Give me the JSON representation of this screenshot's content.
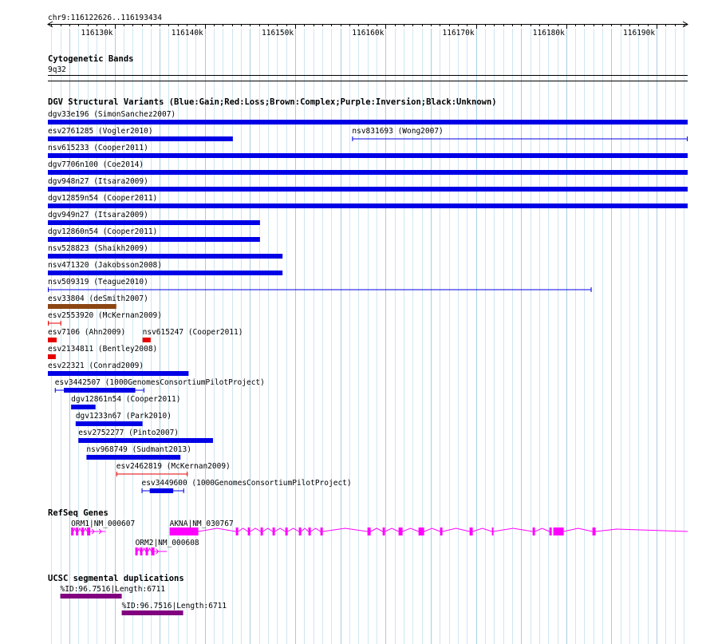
{
  "ruler": {
    "location": "chr9:116122626..116193434",
    "start": 116122626,
    "end": 116193434,
    "ticks": [
      "116130k",
      "116140k",
      "116150k",
      "116160k",
      "116170k",
      "116180k",
      "116190k"
    ]
  },
  "tracks": {
    "cytoband": {
      "title": "Cytogenetic Bands",
      "band": "9q32"
    },
    "dgv": {
      "title": "DGV Structural Variants (Blue:Gain;Red:Loss;Brown:Complex;Purple:Inversion;Black:Unknown)",
      "colors": {
        "gain": "#0000e6",
        "loss": "#e60000",
        "complex": "#8b4513",
        "inversion": "#800080",
        "unknown": "#000000"
      },
      "features": [
        {
          "label": "dgv33e196 (SimonSanchez2007)",
          "type": "gain",
          "start": 116122626,
          "end": 116193434,
          "style": "solid"
        },
        {
          "label": "esv2761285 (Vogler2010)",
          "type": "gain",
          "start": 116122626,
          "end": 116143100,
          "style": "solid"
        },
        {
          "label": "nsv831693 (Wong2007)",
          "type": "gain",
          "start": 116156300,
          "end": 116193434,
          "style": "line"
        },
        {
          "label": "nsv615233 (Cooper2011)",
          "type": "gain",
          "start": 116122626,
          "end": 116193434,
          "style": "solid"
        },
        {
          "label": "dgv7706n100 (Coe2014)",
          "type": "gain",
          "start": 116122626,
          "end": 116193434,
          "style": "solid"
        },
        {
          "label": "dgv948n27 (Itsara2009)",
          "type": "gain",
          "start": 116122626,
          "end": 116193434,
          "style": "solid"
        },
        {
          "label": "dgv12859n54 (Cooper2011)",
          "type": "gain",
          "start": 116122626,
          "end": 116193434,
          "style": "solid"
        },
        {
          "label": "dgv949n27 (Itsara2009)",
          "type": "gain",
          "start": 116122626,
          "end": 116146100,
          "style": "solid"
        },
        {
          "label": "dgv12860n54 (Cooper2011)",
          "type": "gain",
          "start": 116122626,
          "end": 116146100,
          "style": "solid"
        },
        {
          "label": "nsv528823 (Shaikh2009)",
          "type": "gain",
          "start": 116122626,
          "end": 116148600,
          "style": "solid"
        },
        {
          "label": "nsv471320 (Jakobsson2008)",
          "type": "gain",
          "start": 116122626,
          "end": 116148600,
          "style": "solid"
        },
        {
          "label": "nsv509319 (Teague2010)",
          "type": "gain",
          "start": 116122626,
          "end": 116182800,
          "style": "line"
        },
        {
          "label": "esv33804 (deSmith2007)",
          "type": "complex",
          "start": 116122626,
          "end": 116130200,
          "style": "solid"
        },
        {
          "label": "esv2553920 (McKernan2009)",
          "type": "loss",
          "start": 116122626,
          "end": 116124100,
          "style": "line"
        },
        {
          "label": "esv7106 (Ahn2009)",
          "type": "loss",
          "start": 116122626,
          "end": 116123600,
          "style": "solid"
        },
        {
          "label": "nsv615247 (Cooper2011)",
          "type": "loss",
          "start": 116133100,
          "end": 116134000,
          "style": "solid"
        },
        {
          "label": "esv2134811 (Bentley2008)",
          "type": "loss",
          "start": 116122626,
          "end": 116123500,
          "style": "solid"
        },
        {
          "label": "esv22321 (Conrad2009)",
          "type": "gain",
          "start": 116122626,
          "end": 116138200,
          "style": "solid"
        },
        {
          "label": "esv3442507 (1000GenomesConsortiumPilotProject)",
          "type": "gain",
          "start": 116123400,
          "end": 116133300,
          "style": "partial",
          "thickStart": 116124400,
          "thickEnd": 116132300
        },
        {
          "label": "dgv12861n54 (Cooper2011)",
          "type": "gain",
          "start": 116125200,
          "end": 116127900,
          "style": "solid"
        },
        {
          "label": "dgv1233n67 (Park2010)",
          "type": "gain",
          "start": 116125700,
          "end": 116133100,
          "style": "solid"
        },
        {
          "label": "esv2752277 (Pinto2007)",
          "type": "gain",
          "start": 116126000,
          "end": 116140900,
          "style": "solid"
        },
        {
          "label": "nsv968749 (Sudmant2013)",
          "type": "gain",
          "start": 116126900,
          "end": 116137300,
          "style": "solid"
        },
        {
          "label": "esv2462819 (McKernan2009)",
          "type": "loss",
          "start": 116130200,
          "end": 116138100,
          "style": "line"
        },
        {
          "label": "esv3449600 (1000GenomesConsortiumPilotProject)",
          "type": "gain",
          "start": 116133000,
          "end": 116137700,
          "style": "partial",
          "thickStart": 116133900,
          "thickEnd": 116136500
        }
      ]
    },
    "refseq": {
      "title": "RefSeq Genes",
      "color": "#ff00ff",
      "genes": [
        {
          "label": "ORM1|NM_000607",
          "start": 116125200,
          "end": 116129000,
          "strand": "+"
        },
        {
          "label": "AKNA|NM_030767",
          "start": 116136100,
          "end": 116193434,
          "strand": "-"
        },
        {
          "label": "ORM2|NM_000608",
          "start": 116132300,
          "end": 116135800,
          "strand": "+"
        }
      ]
    },
    "segdups": {
      "title": "UCSC segmental duplications",
      "color": "#800080",
      "features": [
        {
          "label": "%ID:96.7516|Length:6711",
          "start": 116124000,
          "end": 116130800
        },
        {
          "label": "%ID:96.7516|Length:6711",
          "start": 116130800,
          "end": 116137600
        }
      ]
    }
  }
}
